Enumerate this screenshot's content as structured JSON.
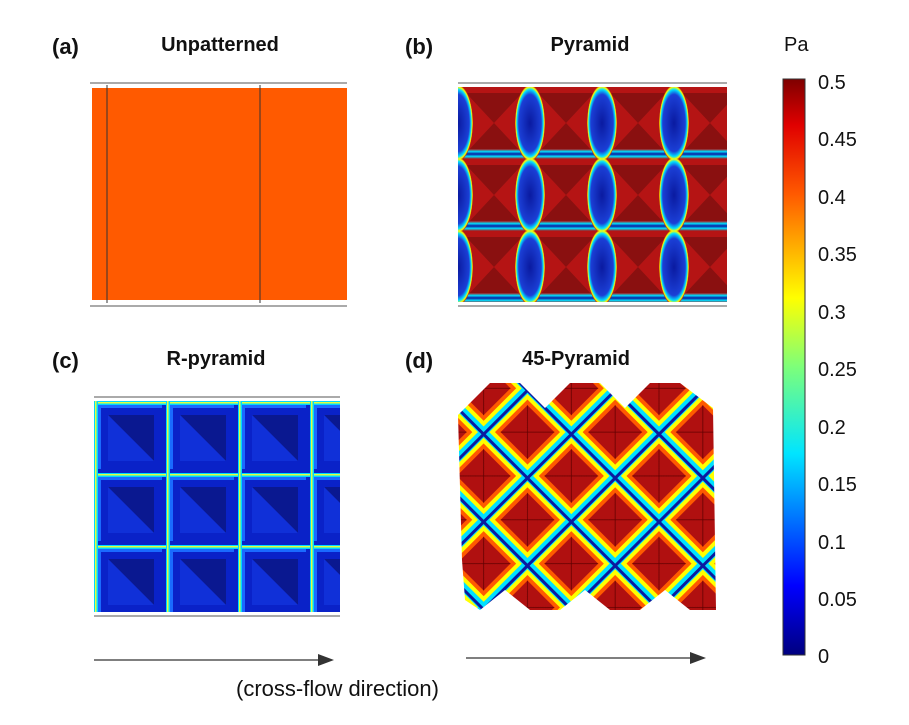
{
  "panels": [
    {
      "id": "a",
      "letter": "(a)",
      "title": "Unpatterned"
    },
    {
      "id": "b",
      "letter": "(b)",
      "title": "Pyramid"
    },
    {
      "id": "c",
      "letter": "(c)",
      "title": "R-pyramid"
    },
    {
      "id": "d",
      "letter": "(d)",
      "title": "45-Pyramid"
    }
  ],
  "colorbar": {
    "unit": "Pa",
    "ticks": [
      "0.5",
      "0.45",
      "0.4",
      "0.35",
      "0.3",
      "0.25",
      "0.2",
      "0.15",
      "0.1",
      "0.05",
      "0"
    ],
    "min": 0,
    "max": 0.5
  },
  "flow_caption": "(cross-flow direction)",
  "colors": {
    "high": "#b01010",
    "low": "#0a1f9c",
    "unpatterned": "#ff5a00"
  }
}
